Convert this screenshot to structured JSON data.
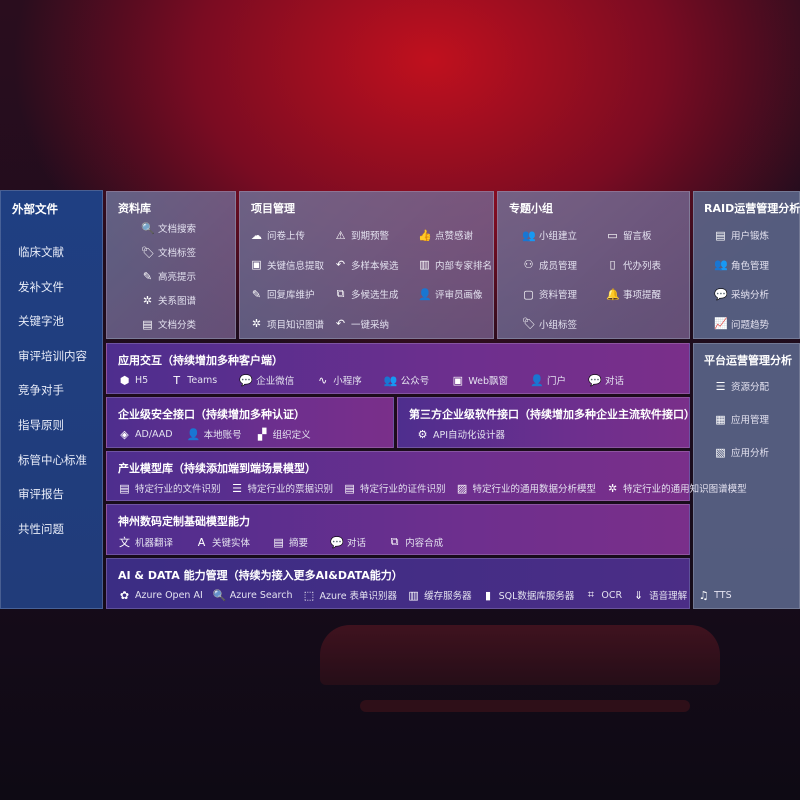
{
  "sidebar": {
    "title": "外部文件",
    "items": [
      "临床文献",
      "发补文件",
      "关键字池",
      "审评培训内容",
      "竞争对手",
      "指导原则",
      "标管中心标准",
      "审评报告",
      "共性问题"
    ]
  },
  "ziliaoku": {
    "title": "资料库",
    "items": [
      {
        "label": "文档搜索",
        "icon": "doc-search-icon"
      },
      {
        "label": "文档标签",
        "icon": "tag-icon"
      },
      {
        "label": "高亮提示",
        "icon": "pen-icon"
      },
      {
        "label": "关系图谱",
        "icon": "graph-icon"
      },
      {
        "label": "文档分类",
        "icon": "doc-category-icon"
      }
    ]
  },
  "xiangmu": {
    "title": "项目管理",
    "items": [
      {
        "label": "问卷上传",
        "icon": "cloud-upload-icon"
      },
      {
        "label": "到期预警",
        "icon": "alarm-icon"
      },
      {
        "label": "点赞感谢",
        "icon": "thumbs-up-icon"
      },
      {
        "label": "关键信息提取",
        "icon": "window-icon"
      },
      {
        "label": "多样本候选",
        "icon": "reply-icon"
      },
      {
        "label": "内部专家排名",
        "icon": "ranking-icon"
      },
      {
        "label": "回复库维护",
        "icon": "edit-icon"
      },
      {
        "label": "多候选生成",
        "icon": "puzzle-icon"
      },
      {
        "label": "评审员画像",
        "icon": "person-icon"
      },
      {
        "label": "项目知识图谱",
        "icon": "graph-icon"
      },
      {
        "label": "一键采纳",
        "icon": "reply-icon"
      }
    ]
  },
  "zhuanti": {
    "title": "专题小组",
    "items": [
      {
        "label": "小组建立",
        "icon": "group-icon"
      },
      {
        "label": "留言板",
        "icon": "bbs-icon"
      },
      {
        "label": "成员管理",
        "icon": "user-add-icon"
      },
      {
        "label": "代办列表",
        "icon": "clipboard-icon"
      },
      {
        "label": "资料管理",
        "icon": "folder-icon"
      },
      {
        "label": "事项提醒",
        "icon": "bell-icon"
      },
      {
        "label": "小组标签",
        "icon": "tag-icon"
      }
    ]
  },
  "raid": {
    "title": "RAID运营管理分析",
    "items": [
      {
        "label": "用户锻炼",
        "icon": "id-card-icon"
      },
      {
        "label": "角色管理",
        "icon": "group-icon"
      },
      {
        "label": "采纳分析",
        "icon": "qa-icon"
      },
      {
        "label": "问题趋势",
        "icon": "trend-icon"
      }
    ]
  },
  "platform": {
    "title": "平台运营管理分析",
    "items": [
      {
        "label": "资源分配",
        "icon": "checklist-icon"
      },
      {
        "label": "应用管理",
        "icon": "apps-icon"
      },
      {
        "label": "应用分析",
        "icon": "analysis-icon"
      }
    ]
  },
  "yingyong": {
    "title": "应用交互（持续增加多种客户端）",
    "items": [
      {
        "label": "H5",
        "icon": "html5-icon"
      },
      {
        "label": "Teams",
        "icon": "teams-icon"
      },
      {
        "label": "企业微信",
        "icon": "wechat-icon"
      },
      {
        "label": "小程序",
        "icon": "miniprogram-icon"
      },
      {
        "label": "公众号",
        "icon": "group-icon"
      },
      {
        "label": "Web飘窗",
        "icon": "window-icon"
      },
      {
        "label": "门户",
        "icon": "portal-icon"
      },
      {
        "label": "对话",
        "icon": "chat-icon"
      }
    ]
  },
  "security": {
    "title": "企业级安全接口（持续增加多种认证）",
    "items": [
      {
        "label": "AD/AAD",
        "icon": "diamond-icon"
      },
      {
        "label": "本地账号",
        "icon": "user-lock-icon"
      },
      {
        "label": "组织定义",
        "icon": "org-icon"
      }
    ]
  },
  "thirdparty": {
    "title": "第三方企业级软件接口（持续增加多种企业主流软件接口）",
    "items": [
      {
        "label": "API自动化设计器",
        "icon": "gear-icon"
      }
    ]
  },
  "industry": {
    "title": "产业模型库（持续添加端到端场景模型）",
    "items": [
      {
        "label": "特定行业的文件识别",
        "icon": "file-icon"
      },
      {
        "label": "特定行业的票据识别",
        "icon": "receipt-icon"
      },
      {
        "label": "特定行业的证件识别",
        "icon": "id-card-icon"
      },
      {
        "label": "特定行业的通用数据分析模型",
        "icon": "chart-icon"
      },
      {
        "label": "特定行业的通用知识图谱模型",
        "icon": "graph-icon"
      }
    ]
  },
  "shenzhou": {
    "title": "神州数码定制基础模型能力",
    "items": [
      {
        "label": "机器翻译",
        "icon": "translate-icon"
      },
      {
        "label": "关键实体",
        "icon": "entity-icon"
      },
      {
        "label": "摘要",
        "icon": "doc-icon"
      },
      {
        "label": "对话",
        "icon": "chat-icon"
      },
      {
        "label": "内容合成",
        "icon": "puzzle-icon"
      }
    ]
  },
  "aidata": {
    "title": "AI & DATA 能力管理（持续为接入更多AI&DATA能力）",
    "items": [
      {
        "label": "Azure Open AI",
        "icon": "openai-icon"
      },
      {
        "label": "Azure Search",
        "icon": "doc-search-icon"
      },
      {
        "label": "Azure 表单识别器",
        "icon": "form-icon"
      },
      {
        "label": "缓存服务器",
        "icon": "cache-icon"
      },
      {
        "label": "SQL数据库服务器",
        "icon": "database-icon"
      },
      {
        "label": "OCR",
        "icon": "ocr-icon"
      },
      {
        "label": "语音理解",
        "icon": "speech-icon"
      },
      {
        "label": "TTS",
        "icon": "tts-icon"
      }
    ]
  }
}
